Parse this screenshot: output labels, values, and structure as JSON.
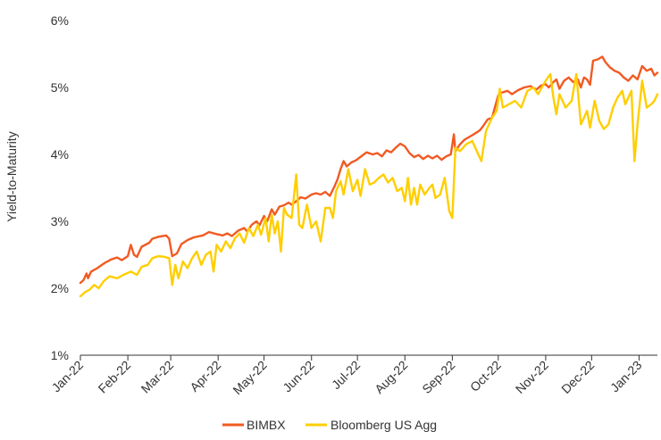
{
  "chart_data": {
    "type": "line",
    "title": "",
    "xlabel": "",
    "ylabel": "Yield-to-Maturity",
    "ylim": [
      1,
      6
    ],
    "xlim": [
      "2022-01-01",
      "2023-01-13"
    ],
    "grid": false,
    "legend_position": "bottom",
    "y_ticks": [
      1,
      2,
      3,
      4,
      5,
      6
    ],
    "y_tick_labels": [
      "1%",
      "2%",
      "3%",
      "4%",
      "5%",
      "6%"
    ],
    "x_ticks": [
      "2022-01-01",
      "2022-02-01",
      "2022-03-01",
      "2022-04-01",
      "2022-05-01",
      "2022-06-01",
      "2022-07-01",
      "2022-08-01",
      "2022-09-01",
      "2022-10-01",
      "2022-11-01",
      "2022-12-01",
      "2023-01-01"
    ],
    "x_tick_labels": [
      "Jan-22",
      "Feb-22",
      "Mar-22",
      "Apr-22",
      "May-22",
      "Jun-22",
      "Jul-22",
      "Aug-22",
      "Sep-22",
      "Oct-22",
      "Nov-22",
      "Dec-22",
      "Jan-23"
    ],
    "series": [
      {
        "name": "BIMBX",
        "color": "#F15A22",
        "points": [
          [
            "2022-01-01",
            2.08
          ],
          [
            "2022-01-03",
            2.12
          ],
          [
            "2022-01-05",
            2.22
          ],
          [
            "2022-01-06",
            2.15
          ],
          [
            "2022-01-08",
            2.25
          ],
          [
            "2022-01-12",
            2.3
          ],
          [
            "2022-01-17",
            2.38
          ],
          [
            "2022-01-21",
            2.43
          ],
          [
            "2022-01-25",
            2.46
          ],
          [
            "2022-01-28",
            2.42
          ],
          [
            "2022-02-01",
            2.48
          ],
          [
            "2022-02-03",
            2.65
          ],
          [
            "2022-02-05",
            2.5
          ],
          [
            "2022-02-07",
            2.47
          ],
          [
            "2022-02-10",
            2.62
          ],
          [
            "2022-02-15",
            2.68
          ],
          [
            "2022-02-17",
            2.74
          ],
          [
            "2022-02-21",
            2.77
          ],
          [
            "2022-02-26",
            2.79
          ],
          [
            "2022-02-28",
            2.74
          ],
          [
            "2022-03-02",
            2.48
          ],
          [
            "2022-03-05",
            2.52
          ],
          [
            "2022-03-08",
            2.66
          ],
          [
            "2022-03-12",
            2.72
          ],
          [
            "2022-03-16",
            2.76
          ],
          [
            "2022-03-22",
            2.79
          ],
          [
            "2022-03-26",
            2.84
          ],
          [
            "2022-03-31",
            2.81
          ],
          [
            "2022-04-04",
            2.79
          ],
          [
            "2022-04-07",
            2.82
          ],
          [
            "2022-04-10",
            2.78
          ],
          [
            "2022-04-14",
            2.86
          ],
          [
            "2022-04-18",
            2.9
          ],
          [
            "2022-04-20",
            2.85
          ],
          [
            "2022-04-23",
            2.95
          ],
          [
            "2022-04-26",
            3.0
          ],
          [
            "2022-04-28",
            2.94
          ],
          [
            "2022-05-01",
            3.08
          ],
          [
            "2022-05-03",
            3.0
          ],
          [
            "2022-05-06",
            3.18
          ],
          [
            "2022-05-08",
            3.1
          ],
          [
            "2022-05-11",
            3.22
          ],
          [
            "2022-05-14",
            3.24
          ],
          [
            "2022-05-17",
            3.28
          ],
          [
            "2022-05-19",
            3.25
          ],
          [
            "2022-05-22",
            3.3
          ],
          [
            "2022-05-25",
            3.36
          ],
          [
            "2022-05-28",
            3.34
          ],
          [
            "2022-06-01",
            3.4
          ],
          [
            "2022-06-04",
            3.42
          ],
          [
            "2022-06-07",
            3.4
          ],
          [
            "2022-06-10",
            3.44
          ],
          [
            "2022-06-13",
            3.38
          ],
          [
            "2022-06-16",
            3.52
          ],
          [
            "2022-06-18",
            3.63
          ],
          [
            "2022-06-20",
            3.78
          ],
          [
            "2022-06-22",
            3.9
          ],
          [
            "2022-06-24",
            3.82
          ],
          [
            "2022-06-27",
            3.88
          ],
          [
            "2022-06-30",
            3.91
          ],
          [
            "2022-07-04",
            3.98
          ],
          [
            "2022-07-07",
            4.03
          ],
          [
            "2022-07-11",
            4.0
          ],
          [
            "2022-07-14",
            4.02
          ],
          [
            "2022-07-17",
            3.97
          ],
          [
            "2022-07-20",
            4.06
          ],
          [
            "2022-07-23",
            4.03
          ],
          [
            "2022-07-26",
            4.1
          ],
          [
            "2022-07-29",
            4.16
          ],
          [
            "2022-08-01",
            4.12
          ],
          [
            "2022-08-04",
            4.02
          ],
          [
            "2022-08-07",
            3.96
          ],
          [
            "2022-08-10",
            3.99
          ],
          [
            "2022-08-13",
            3.93
          ],
          [
            "2022-08-16",
            3.98
          ],
          [
            "2022-08-19",
            3.94
          ],
          [
            "2022-08-22",
            3.98
          ],
          [
            "2022-08-25",
            3.92
          ],
          [
            "2022-08-28",
            3.97
          ],
          [
            "2022-08-31",
            4.0
          ],
          [
            "2022-09-02",
            4.3
          ],
          [
            "2022-09-03",
            4.05
          ],
          [
            "2022-09-06",
            4.15
          ],
          [
            "2022-09-09",
            4.22
          ],
          [
            "2022-09-12",
            4.26
          ],
          [
            "2022-09-15",
            4.3
          ],
          [
            "2022-09-19",
            4.36
          ],
          [
            "2022-09-21",
            4.42
          ],
          [
            "2022-09-24",
            4.52
          ],
          [
            "2022-09-27",
            4.55
          ],
          [
            "2022-09-29",
            4.72
          ],
          [
            "2022-10-01",
            4.88
          ],
          [
            "2022-10-03",
            4.92
          ],
          [
            "2022-10-07",
            4.95
          ],
          [
            "2022-10-10",
            4.9
          ],
          [
            "2022-10-14",
            4.96
          ],
          [
            "2022-10-18",
            5.0
          ],
          [
            "2022-10-22",
            5.02
          ],
          [
            "2022-10-26",
            4.97
          ],
          [
            "2022-10-29",
            5.03
          ],
          [
            "2022-11-01",
            5.05
          ],
          [
            "2022-11-03",
            5.0
          ],
          [
            "2022-11-06",
            5.08
          ],
          [
            "2022-11-08",
            5.12
          ],
          [
            "2022-11-10",
            4.98
          ],
          [
            "2022-11-13",
            5.1
          ],
          [
            "2022-11-16",
            5.15
          ],
          [
            "2022-11-19",
            5.08
          ],
          [
            "2022-11-22",
            5.12
          ],
          [
            "2022-11-24",
            5.0
          ],
          [
            "2022-11-26",
            5.15
          ],
          [
            "2022-11-28",
            5.12
          ],
          [
            "2022-11-30",
            5.04
          ],
          [
            "2022-12-02",
            5.4
          ],
          [
            "2022-12-05",
            5.42
          ],
          [
            "2022-12-08",
            5.46
          ],
          [
            "2022-12-10",
            5.38
          ],
          [
            "2022-12-13",
            5.3
          ],
          [
            "2022-12-16",
            5.25
          ],
          [
            "2022-12-19",
            5.22
          ],
          [
            "2022-12-22",
            5.15
          ],
          [
            "2022-12-25",
            5.1
          ],
          [
            "2022-12-28",
            5.18
          ],
          [
            "2022-12-31",
            5.12
          ],
          [
            "2023-01-03",
            5.32
          ],
          [
            "2023-01-06",
            5.25
          ],
          [
            "2023-01-09",
            5.28
          ],
          [
            "2023-01-11",
            5.18
          ],
          [
            "2023-01-13",
            5.22
          ]
        ]
      },
      {
        "name": "Bloomberg US Agg",
        "color": "#FFCE00",
        "points": [
          [
            "2022-01-01",
            1.88
          ],
          [
            "2022-01-04",
            1.94
          ],
          [
            "2022-01-07",
            1.98
          ],
          [
            "2022-01-10",
            2.05
          ],
          [
            "2022-01-13",
            2.0
          ],
          [
            "2022-01-16",
            2.1
          ],
          [
            "2022-01-20",
            2.18
          ],
          [
            "2022-01-25",
            2.15
          ],
          [
            "2022-01-29",
            2.2
          ],
          [
            "2022-02-03",
            2.25
          ],
          [
            "2022-02-07",
            2.2
          ],
          [
            "2022-02-10",
            2.32
          ],
          [
            "2022-02-14",
            2.35
          ],
          [
            "2022-02-17",
            2.45
          ],
          [
            "2022-02-21",
            2.48
          ],
          [
            "2022-02-25",
            2.47
          ],
          [
            "2022-02-28",
            2.45
          ],
          [
            "2022-03-02",
            2.05
          ],
          [
            "2022-03-04",
            2.35
          ],
          [
            "2022-03-06",
            2.15
          ],
          [
            "2022-03-09",
            2.4
          ],
          [
            "2022-03-12",
            2.3
          ],
          [
            "2022-03-15",
            2.45
          ],
          [
            "2022-03-18",
            2.55
          ],
          [
            "2022-03-21",
            2.35
          ],
          [
            "2022-03-24",
            2.5
          ],
          [
            "2022-03-27",
            2.55
          ],
          [
            "2022-03-29",
            2.25
          ],
          [
            "2022-03-31",
            2.65
          ],
          [
            "2022-04-03",
            2.55
          ],
          [
            "2022-04-06",
            2.7
          ],
          [
            "2022-04-09",
            2.6
          ],
          [
            "2022-04-12",
            2.75
          ],
          [
            "2022-04-15",
            2.82
          ],
          [
            "2022-04-18",
            2.68
          ],
          [
            "2022-04-21",
            2.9
          ],
          [
            "2022-04-24",
            2.78
          ],
          [
            "2022-04-27",
            2.95
          ],
          [
            "2022-04-29",
            2.8
          ],
          [
            "2022-05-02",
            3.05
          ],
          [
            "2022-05-04",
            2.7
          ],
          [
            "2022-05-06",
            3.1
          ],
          [
            "2022-05-08",
            2.82
          ],
          [
            "2022-05-10",
            3.0
          ],
          [
            "2022-05-12",
            2.55
          ],
          [
            "2022-05-14",
            3.2
          ],
          [
            "2022-05-16",
            3.1
          ],
          [
            "2022-05-19",
            3.05
          ],
          [
            "2022-05-22",
            3.7
          ],
          [
            "2022-05-24",
            2.95
          ],
          [
            "2022-05-26",
            2.9
          ],
          [
            "2022-05-29",
            3.25
          ],
          [
            "2022-06-01",
            2.9
          ],
          [
            "2022-06-04",
            3.0
          ],
          [
            "2022-06-07",
            2.7
          ],
          [
            "2022-06-10",
            3.2
          ],
          [
            "2022-06-13",
            3.2
          ],
          [
            "2022-06-15",
            3.05
          ],
          [
            "2022-06-17",
            3.45
          ],
          [
            "2022-06-20",
            3.6
          ],
          [
            "2022-06-22",
            3.4
          ],
          [
            "2022-06-25",
            3.78
          ],
          [
            "2022-06-28",
            3.45
          ],
          [
            "2022-07-01",
            3.62
          ],
          [
            "2022-07-03",
            3.38
          ],
          [
            "2022-07-06",
            3.78
          ],
          [
            "2022-07-09",
            3.55
          ],
          [
            "2022-07-12",
            3.58
          ],
          [
            "2022-07-15",
            3.65
          ],
          [
            "2022-07-18",
            3.7
          ],
          [
            "2022-07-21",
            3.58
          ],
          [
            "2022-07-24",
            3.65
          ],
          [
            "2022-07-27",
            3.45
          ],
          [
            "2022-07-30",
            3.5
          ],
          [
            "2022-08-01",
            3.3
          ],
          [
            "2022-08-03",
            3.65
          ],
          [
            "2022-08-05",
            3.25
          ],
          [
            "2022-08-07",
            3.5
          ],
          [
            "2022-08-09",
            3.25
          ],
          [
            "2022-08-11",
            3.55
          ],
          [
            "2022-08-14",
            3.4
          ],
          [
            "2022-08-17",
            3.5
          ],
          [
            "2022-08-19",
            3.55
          ],
          [
            "2022-08-21",
            3.35
          ],
          [
            "2022-08-24",
            3.4
          ],
          [
            "2022-08-27",
            3.65
          ],
          [
            "2022-08-30",
            3.15
          ],
          [
            "2022-09-01",
            3.05
          ],
          [
            "2022-09-03",
            4.1
          ],
          [
            "2022-09-06",
            4.05
          ],
          [
            "2022-09-10",
            4.15
          ],
          [
            "2022-09-14",
            4.2
          ],
          [
            "2022-09-17",
            4.05
          ],
          [
            "2022-09-20",
            3.9
          ],
          [
            "2022-09-23",
            4.35
          ],
          [
            "2022-09-27",
            4.55
          ],
          [
            "2022-09-30",
            4.65
          ],
          [
            "2022-10-02",
            4.98
          ],
          [
            "2022-10-04",
            4.7
          ],
          [
            "2022-10-08",
            4.75
          ],
          [
            "2022-10-12",
            4.8
          ],
          [
            "2022-10-16",
            4.7
          ],
          [
            "2022-10-20",
            4.95
          ],
          [
            "2022-10-24",
            5.0
          ],
          [
            "2022-10-27",
            4.9
          ],
          [
            "2022-11-01",
            5.1
          ],
          [
            "2022-11-04",
            5.2
          ],
          [
            "2022-11-06",
            4.85
          ],
          [
            "2022-11-08",
            4.6
          ],
          [
            "2022-11-10",
            4.9
          ],
          [
            "2022-11-14",
            4.7
          ],
          [
            "2022-11-18",
            4.8
          ],
          [
            "2022-11-21",
            5.2
          ],
          [
            "2022-11-24",
            4.45
          ],
          [
            "2022-11-26",
            4.55
          ],
          [
            "2022-11-28",
            4.65
          ],
          [
            "2022-11-30",
            4.4
          ],
          [
            "2022-12-03",
            4.8
          ],
          [
            "2022-12-06",
            4.5
          ],
          [
            "2022-12-09",
            4.38
          ],
          [
            "2022-12-12",
            4.45
          ],
          [
            "2022-12-15",
            4.7
          ],
          [
            "2022-12-18",
            4.85
          ],
          [
            "2022-12-21",
            4.95
          ],
          [
            "2022-12-23",
            4.75
          ],
          [
            "2022-12-27",
            4.95
          ],
          [
            "2022-12-29",
            3.9
          ],
          [
            "2022-12-31",
            4.45
          ],
          [
            "2023-01-03",
            5.1
          ],
          [
            "2023-01-06",
            4.7
          ],
          [
            "2023-01-09",
            4.75
          ],
          [
            "2023-01-11",
            4.8
          ],
          [
            "2023-01-13",
            4.9
          ]
        ]
      }
    ]
  }
}
